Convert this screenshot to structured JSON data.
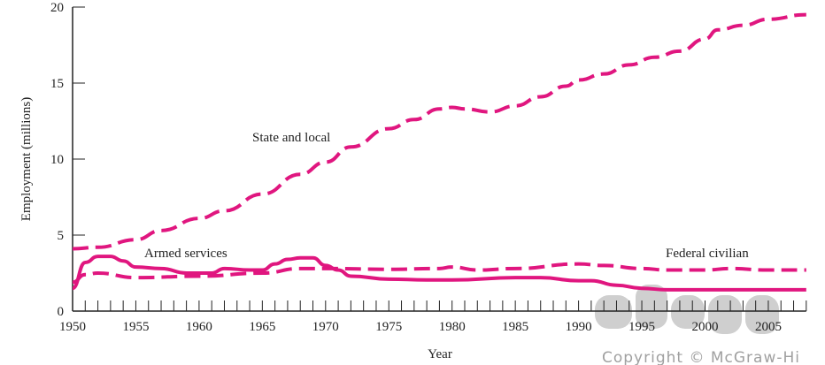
{
  "chart_data": {
    "type": "line",
    "title": "",
    "xlabel": "Year",
    "ylabel": "Employment (millions)",
    "xlim": [
      1950,
      2008
    ],
    "ylim": [
      0,
      20
    ],
    "xticks": [
      1950,
      1955,
      1960,
      1965,
      1970,
      1975,
      1980,
      1985,
      1990,
      1995,
      2000,
      2005
    ],
    "yticks": [
      0,
      5,
      10,
      15,
      20
    ],
    "color": "#e0167f",
    "series": [
      {
        "name": "State and local",
        "style": "dashed",
        "x": [
          1950,
          1952,
          1955,
          1957,
          1960,
          1962,
          1965,
          1968,
          1970,
          1972,
          1975,
          1977,
          1979,
          1980,
          1981,
          1983,
          1985,
          1987,
          1989,
          1990,
          1992,
          1994,
          1996,
          1998,
          2000,
          2001,
          2003,
          2005,
          2008
        ],
        "y": [
          4.1,
          4.2,
          4.7,
          5.3,
          6.1,
          6.6,
          7.7,
          9.0,
          9.8,
          10.8,
          12.0,
          12.6,
          13.3,
          13.4,
          13.3,
          13.1,
          13.5,
          14.1,
          14.8,
          15.2,
          15.6,
          16.2,
          16.7,
          17.1,
          17.9,
          18.5,
          18.8,
          19.2,
          19.5
        ]
      },
      {
        "name": "Armed services",
        "style": "solid",
        "x": [
          1950,
          1951,
          1952,
          1953,
          1954,
          1955,
          1957,
          1959,
          1961,
          1962,
          1964,
          1965,
          1966,
          1967,
          1968,
          1969,
          1970,
          1971,
          1972,
          1975,
          1978,
          1980,
          1985,
          1987,
          1990,
          1991,
          1993,
          1995,
          1997,
          2000,
          2008
        ],
        "y": [
          1.5,
          3.2,
          3.6,
          3.6,
          3.3,
          2.9,
          2.8,
          2.5,
          2.5,
          2.8,
          2.7,
          2.7,
          3.1,
          3.4,
          3.5,
          3.5,
          3.0,
          2.7,
          2.3,
          2.1,
          2.05,
          2.05,
          2.2,
          2.2,
          2.0,
          2.0,
          1.7,
          1.5,
          1.4,
          1.4,
          1.4
        ]
      },
      {
        "name": "Federal civilian",
        "style": "dashed",
        "x": [
          1950,
          1951,
          1952,
          1955,
          1960,
          1965,
          1968,
          1970,
          1975,
          1979,
          1980,
          1982,
          1985,
          1990,
          1992,
          1995,
          1997,
          2000,
          2002,
          2005,
          2008
        ],
        "y": [
          1.9,
          2.4,
          2.5,
          2.2,
          2.3,
          2.5,
          2.8,
          2.8,
          2.75,
          2.8,
          2.9,
          2.7,
          2.8,
          3.1,
          3.0,
          2.8,
          2.7,
          2.7,
          2.8,
          2.7,
          2.7
        ]
      }
    ],
    "annotations": [
      "State and local",
      "Armed services",
      "Federal civilian"
    ],
    "legend": "none (inline labels)",
    "grid": false
  },
  "watermark": {
    "logo": "Chegg",
    "copyright": "Copyright © McGraw-Hi"
  }
}
